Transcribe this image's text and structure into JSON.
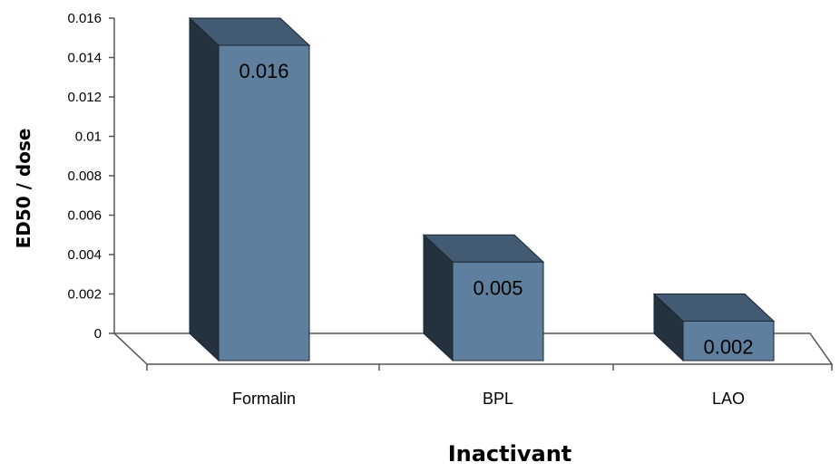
{
  "chart_data": {
    "type": "bar",
    "categories": [
      "Formalin",
      "BPL",
      "LAO"
    ],
    "values": [
      0.016,
      0.005,
      0.002
    ],
    "data_labels": [
      "0.016",
      "0.005",
      "0.002"
    ],
    "ylim": [
      0,
      0.016
    ],
    "yticks": [
      "0",
      "0.002",
      "0.004",
      "0.006",
      "0.008",
      "0.01",
      "0.012",
      "0.014",
      "0.016"
    ],
    "ylabel": "ED50 / dose",
    "xlabel": "Inactivant",
    "grid": false,
    "three_d": true,
    "colors": {
      "front": "#5f7f9e",
      "side": "#24323e",
      "top": "#435a73",
      "edge": "#1b2530",
      "floor": "#ffffff",
      "axis": "#555555"
    }
  }
}
